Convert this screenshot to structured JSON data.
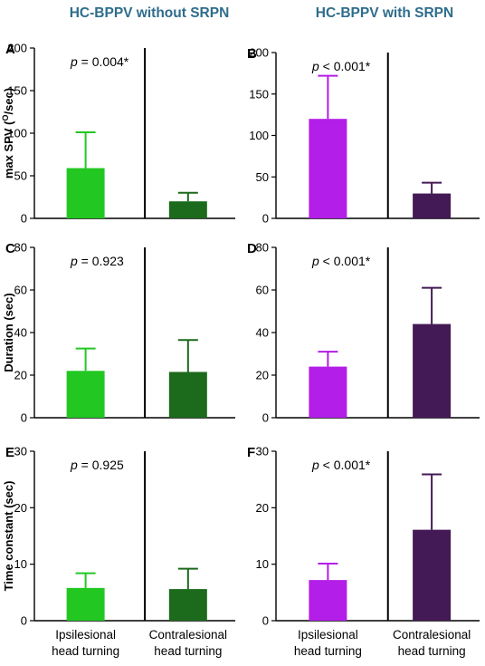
{
  "columns": {
    "left_title": "HC-BPPV without SRPN",
    "right_title": "HC-BPPV with SRPN"
  },
  "x_labels": {
    "ipsi_line1": "Ipsilesional",
    "ipsi_line2": "head turning",
    "contra_line1": "Contralesional",
    "contra_line2": "head turning"
  },
  "colors": {
    "title": "#2e6d8c",
    "left_ipsi": "#22c722",
    "left_contra": "#1c6a1c",
    "right_ipsi": "#b31ee8",
    "right_contra": "#431a55"
  },
  "chart_data": [
    {
      "panel": "A",
      "type": "bar",
      "categories": [
        "Ipsilesional head turning",
        "Contralesional head turning"
      ],
      "values": [
        59,
        20
      ],
      "errors": [
        42,
        10
      ],
      "ylabel": "max SPV (O/sec)",
      "ylim": [
        0,
        200
      ],
      "yticks": [
        0,
        50,
        100,
        150,
        200
      ],
      "annotation": "p = 0.004*",
      "p_prefix": "p",
      "p_rest": " = 0.004*",
      "colors": [
        "#22c722",
        "#1c6a1c"
      ]
    },
    {
      "panel": "B",
      "type": "bar",
      "categories": [
        "Ipsilesional head turning",
        "Contralesional head turning"
      ],
      "values": [
        120,
        30
      ],
      "errors": [
        52,
        13
      ],
      "ylabel": "",
      "ylim": [
        0,
        200
      ],
      "yticks": [
        0,
        50,
        100,
        150,
        200
      ],
      "annotation": "p < 0.001*",
      "p_prefix": "p",
      "p_rest": " < 0.001*",
      "colors": [
        "#b31ee8",
        "#431a55"
      ]
    },
    {
      "panel": "C",
      "type": "bar",
      "categories": [
        "Ipsilesional head turning",
        "Contralesional head turning"
      ],
      "values": [
        22,
        21.5
      ],
      "errors": [
        10.5,
        15
      ],
      "ylabel": "Duration (sec)",
      "ylim": [
        0,
        80
      ],
      "yticks": [
        0,
        20,
        40,
        60,
        80
      ],
      "annotation": "p = 0.923",
      "p_prefix": "p",
      "p_rest": " = 0.923",
      "colors": [
        "#22c722",
        "#1c6a1c"
      ]
    },
    {
      "panel": "D",
      "type": "bar",
      "categories": [
        "Ipsilesional head turning",
        "Contralesional head turning"
      ],
      "values": [
        24,
        44
      ],
      "errors": [
        7,
        17
      ],
      "ylabel": "",
      "ylim": [
        0,
        80
      ],
      "yticks": [
        0,
        20,
        40,
        60,
        80
      ],
      "annotation": "p < 0.001*",
      "p_prefix": "p",
      "p_rest": " < 0.001*",
      "colors": [
        "#b31ee8",
        "#431a55"
      ]
    },
    {
      "panel": "E",
      "type": "bar",
      "categories": [
        "Ipsilesional head turning",
        "Contralesional head turning"
      ],
      "values": [
        5.8,
        5.6
      ],
      "errors": [
        2.6,
        3.6
      ],
      "ylabel": "Time constant (sec)",
      "ylim": [
        0,
        30
      ],
      "yticks": [
        0,
        10,
        20,
        30
      ],
      "annotation": "p = 0.925",
      "p_prefix": "p",
      "p_rest": " = 0.925",
      "colors": [
        "#22c722",
        "#1c6a1c"
      ]
    },
    {
      "panel": "F",
      "type": "bar",
      "categories": [
        "Ipsilesional head turning",
        "Contralesional head turning"
      ],
      "values": [
        7.2,
        16.1
      ],
      "errors": [
        2.9,
        9.8
      ],
      "ylabel": "",
      "ylim": [
        0,
        30
      ],
      "yticks": [
        0,
        10,
        20,
        30
      ],
      "annotation": "p < 0.001*",
      "p_prefix": "p",
      "p_rest": " < 0.001*",
      "colors": [
        "#b31ee8",
        "#431a55"
      ]
    }
  ]
}
